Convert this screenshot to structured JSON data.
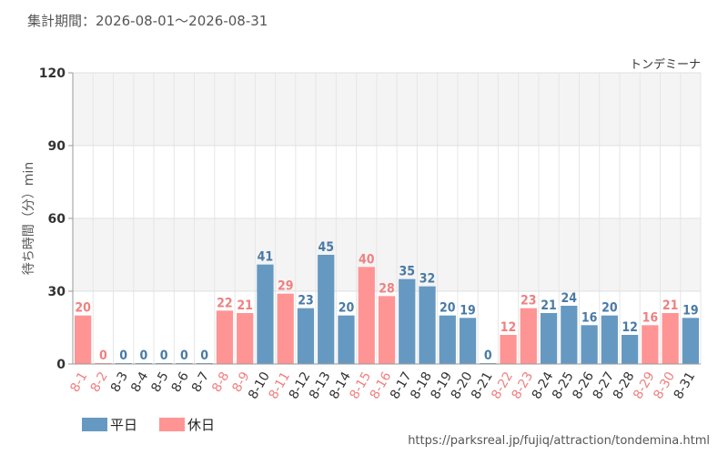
{
  "header": {
    "period_label": "集計期間：2026-08-01～2026-08-31",
    "attraction": "トンデミーナ"
  },
  "source_url": "https://parksreal.jp/fujiq/attraction/tondemina.html",
  "colors": {
    "weekday": "#6699c2",
    "holiday": "#ff9494",
    "weekday_text": "#4a7aa6",
    "holiday_text": "#f08080"
  },
  "chart_data": {
    "type": "bar",
    "ylabel": "待ち時間（分）min",
    "ylim": [
      0,
      120
    ],
    "yticks": [
      0,
      30,
      60,
      90,
      120
    ],
    "grid": true,
    "legend_position": "bottom-left",
    "categories": [
      "8-1",
      "8-2",
      "8-3",
      "8-4",
      "8-5",
      "8-6",
      "8-7",
      "8-8",
      "8-9",
      "8-10",
      "8-11",
      "8-12",
      "8-13",
      "8-14",
      "8-15",
      "8-16",
      "8-17",
      "8-18",
      "8-19",
      "8-20",
      "8-21",
      "8-22",
      "8-23",
      "8-24",
      "8-25",
      "8-26",
      "8-27",
      "8-28",
      "8-29",
      "8-30",
      "8-31"
    ],
    "values": [
      20,
      0,
      0,
      0,
      0,
      0,
      0,
      22,
      21,
      41,
      29,
      23,
      45,
      20,
      40,
      28,
      35,
      32,
      20,
      19,
      0,
      12,
      23,
      21,
      24,
      16,
      20,
      12,
      16,
      21,
      19
    ],
    "day_type": [
      "holiday",
      "holiday",
      "weekday",
      "weekday",
      "weekday",
      "weekday",
      "weekday",
      "holiday",
      "holiday",
      "weekday",
      "holiday",
      "weekday",
      "weekday",
      "weekday",
      "holiday",
      "holiday",
      "weekday",
      "weekday",
      "weekday",
      "weekday",
      "weekday",
      "holiday",
      "holiday",
      "weekday",
      "weekday",
      "weekday",
      "weekday",
      "weekday",
      "holiday",
      "holiday",
      "weekday"
    ],
    "series": [
      {
        "name": "平日",
        "key": "weekday"
      },
      {
        "name": "休日",
        "key": "holiday"
      }
    ]
  }
}
